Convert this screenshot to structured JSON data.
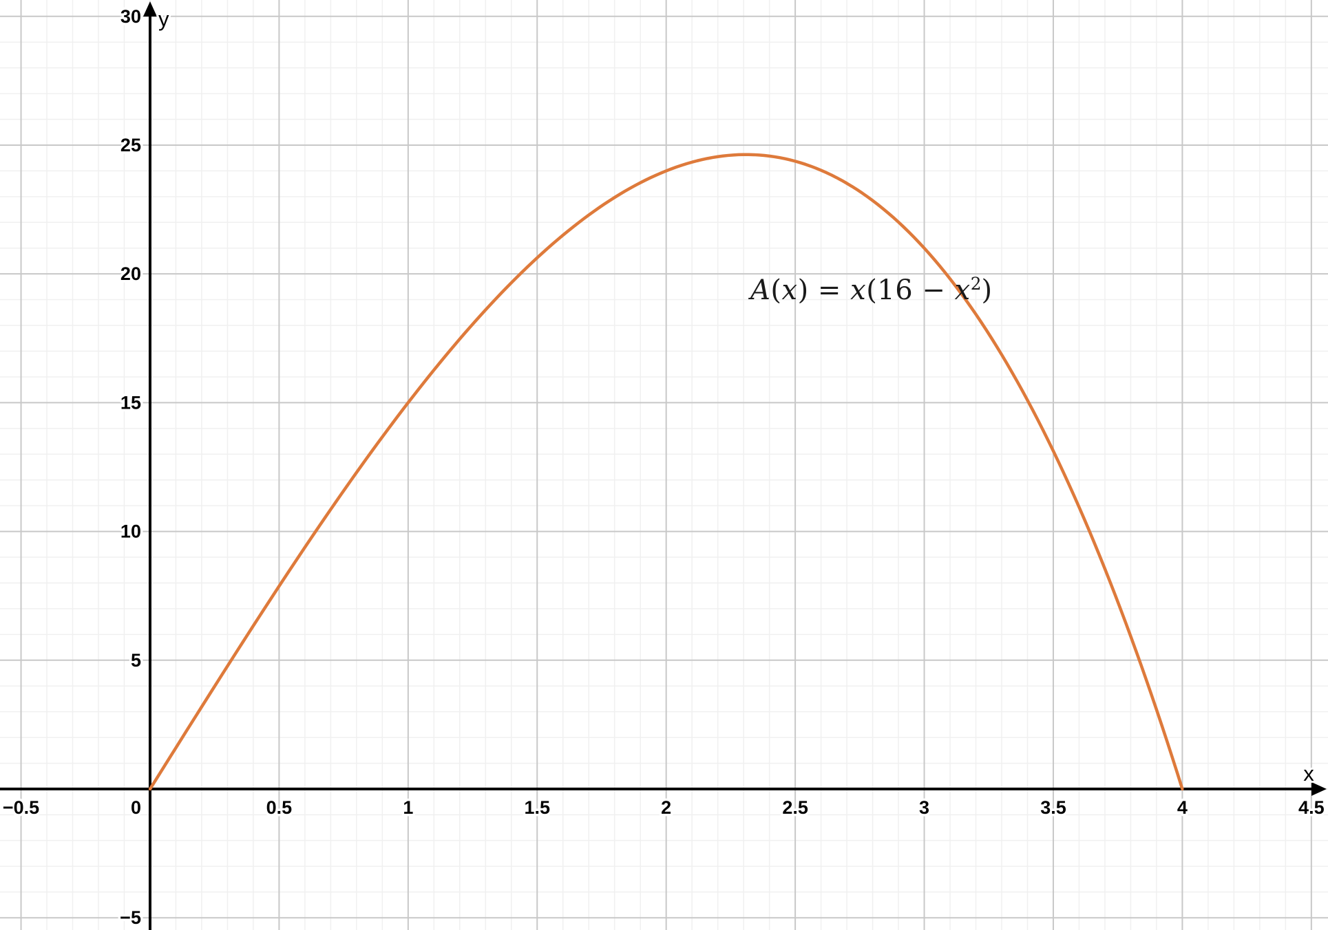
{
  "chart_data": {
    "type": "line",
    "title": "",
    "function_label": "A(x) = x(16 − x²)",
    "equation_segments": [
      {
        "text": "A",
        "italic": true,
        "sup": false
      },
      {
        "text": "(",
        "italic": false,
        "sup": false
      },
      {
        "text": "x",
        "italic": true,
        "sup": false
      },
      {
        "text": ") = ",
        "italic": false,
        "sup": false
      },
      {
        "text": "x",
        "italic": true,
        "sup": false
      },
      {
        "text": "(16 − ",
        "italic": false,
        "sup": false
      },
      {
        "text": "x",
        "italic": true,
        "sup": false
      },
      {
        "text": "2",
        "italic": false,
        "sup": true
      },
      {
        "text": ")",
        "italic": false,
        "sup": false
      }
    ],
    "series": [
      {
        "name": "A",
        "poly_coeffs": [
          0,
          16,
          0,
          -1
        ],
        "domain": [
          0,
          4
        ],
        "color": "#de7a3b",
        "stroke_width": 4.5,
        "sample_step": 0.02,
        "key_points": {
          "starts_at_origin": true,
          "x_intercepts": [
            0,
            4
          ],
          "maximum": {
            "x": 2.31,
            "y": 24.63
          }
        }
      }
    ],
    "axes": {
      "xlim": [
        -0.5815,
        4.5645
      ],
      "ylim": [
        -5.475,
        30.635
      ],
      "x_major_step": 0.5,
      "x_minor_step": 0.1,
      "y_major_step": 5,
      "y_minor_step": 1,
      "x_ticks": [
        {
          "v": -0.5,
          "label": "−0.5"
        },
        {
          "v": 0.5,
          "label": "0.5"
        },
        {
          "v": 1,
          "label": "1"
        },
        {
          "v": 1.5,
          "label": "1.5"
        },
        {
          "v": 2,
          "label": "2"
        },
        {
          "v": 2.5,
          "label": "2.5"
        },
        {
          "v": 3,
          "label": "3"
        },
        {
          "v": 3.5,
          "label": "3.5"
        },
        {
          "v": 4,
          "label": "4"
        },
        {
          "v": 4.5,
          "label": "4.5"
        }
      ],
      "y_ticks": [
        {
          "v": -5,
          "label": "−5"
        },
        {
          "v": 5,
          "label": "5"
        },
        {
          "v": 10,
          "label": "10"
        },
        {
          "v": 15,
          "label": "15"
        },
        {
          "v": 20,
          "label": "20"
        },
        {
          "v": 25,
          "label": "25"
        },
        {
          "v": 30,
          "label": "30"
        }
      ],
      "origin_label": "0",
      "x_axis_name": "x",
      "y_axis_name": "y",
      "grid": true,
      "legend": "none"
    },
    "colors": {
      "background": "#ffffff",
      "axis": "#000000",
      "major_grid": "#c8c8c8",
      "minor_grid": "#f0f0f0",
      "curve": "#de7a3b",
      "label_text": "#000000"
    }
  }
}
